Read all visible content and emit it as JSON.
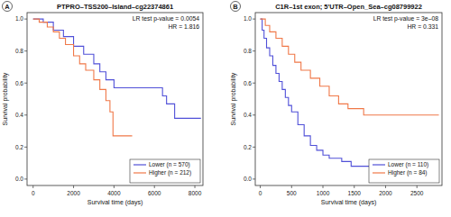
{
  "chart_data": [
    {
      "type": "step",
      "panel_label": "A",
      "title": "PTPRO–TSS200–Island–cg22374861",
      "x_label": "Survival time (days)",
      "y_label": "Survival probability",
      "annotations": [
        "LR test p-value = 0.0054",
        "HR = 1.816"
      ],
      "xlim": [
        -300,
        8400
      ],
      "xticks": [
        0,
        2000,
        4000,
        6000,
        8000
      ],
      "ylim": [
        -0.04,
        1.04
      ],
      "yticks": [
        {
          "value": 0,
          "label": "0.0"
        },
        0.2,
        0.4,
        0.6,
        0.8,
        {
          "value": 1,
          "label": "1.0"
        }
      ],
      "legend": "bottom-right",
      "series": [
        {
          "name": "Lower (n = 570)",
          "color": "#5050d8",
          "x": [
            0,
            500,
            1000,
            1500,
            2000,
            2500,
            3000,
            3300,
            3600,
            4000,
            5000,
            6000,
            6400,
            6600,
            7000,
            8300
          ],
          "values": [
            1,
            0.98,
            0.93,
            0.89,
            0.83,
            0.78,
            0.72,
            0.67,
            0.62,
            0.57,
            0.57,
            0.57,
            0.52,
            0.47,
            0.38,
            0.38
          ]
        },
        {
          "name": "Higher (n = 212)",
          "color": "#f07848",
          "x": [
            0,
            300,
            700,
            1000,
            1300,
            1600,
            2000,
            2300,
            2600,
            3000,
            3300,
            3600,
            3800,
            3950,
            4900
          ],
          "values": [
            1,
            0.98,
            0.95,
            0.92,
            0.88,
            0.84,
            0.77,
            0.72,
            0.68,
            0.62,
            0.56,
            0.49,
            0.42,
            0.27,
            0.27
          ]
        }
      ]
    },
    {
      "type": "step",
      "panel_label": "B",
      "title": "C1R–1st exon; 5'UTR–Open_Sea–cg08799922",
      "x_label": "Survival time (days)",
      "y_label": "Survival probability",
      "annotations": [
        "LR test p-value = 3e–08",
        "HR = 0.331"
      ],
      "xlim": [
        -80,
        2900
      ],
      "xticks": [
        0,
        500,
        1000,
        1500,
        2000,
        2500
      ],
      "ylim": [
        -0.04,
        1.04
      ],
      "yticks": [
        {
          "value": 0,
          "label": "0.0"
        },
        0.2,
        0.4,
        0.6,
        0.8,
        {
          "value": 1,
          "label": "1.0"
        }
      ],
      "legend": "bottom-right",
      "series": [
        {
          "name": "Lower (n = 110)",
          "color": "#5050d8",
          "x": [
            0,
            30,
            60,
            100,
            150,
            200,
            250,
            300,
            350,
            400,
            450,
            500,
            600,
            700,
            800,
            900,
            1000,
            1100,
            1300,
            1450,
            2800
          ],
          "values": [
            1,
            0.93,
            0.88,
            0.82,
            0.77,
            0.71,
            0.66,
            0.61,
            0.56,
            0.51,
            0.46,
            0.42,
            0.34,
            0.27,
            0.21,
            0.18,
            0.15,
            0.13,
            0.11,
            0.08,
            0.08
          ]
        },
        {
          "name": "Higher (n = 84)",
          "color": "#f07848",
          "x": [
            0,
            80,
            150,
            250,
            350,
            450,
            550,
            650,
            800,
            950,
            1100,
            1250,
            1400,
            1650,
            2850
          ],
          "values": [
            1,
            0.96,
            0.92,
            0.88,
            0.83,
            0.78,
            0.73,
            0.68,
            0.63,
            0.58,
            0.52,
            0.47,
            0.44,
            0.4,
            0.4
          ]
        }
      ]
    }
  ]
}
